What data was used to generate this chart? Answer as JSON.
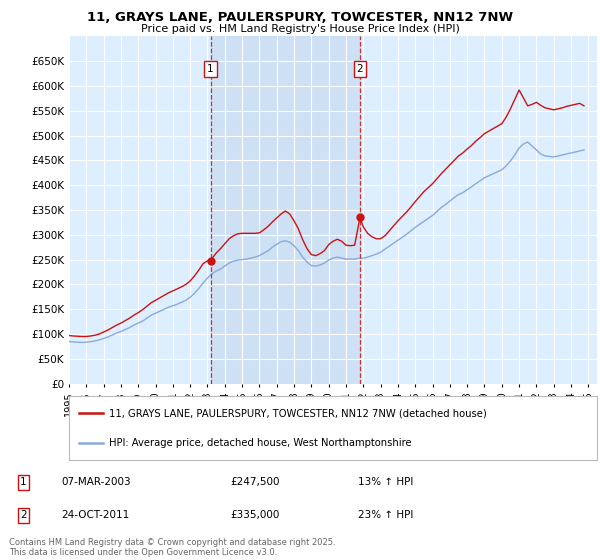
{
  "title": "11, GRAYS LANE, PAULERSPURY, TOWCESTER, NN12 7NW",
  "subtitle": "Price paid vs. HM Land Registry's House Price Index (HPI)",
  "background_color": "#ffffff",
  "plot_bg_color": "#ddeeff",
  "shade_color": "#c8dcf0",
  "grid_color": "#ffffff",
  "x_start": 1995.0,
  "x_end": 2025.5,
  "y_min": 0,
  "y_max": 700000,
  "y_ticks": [
    0,
    50000,
    100000,
    150000,
    200000,
    250000,
    300000,
    350000,
    400000,
    450000,
    500000,
    550000,
    600000,
    650000
  ],
  "x_ticks": [
    1995,
    1996,
    1997,
    1998,
    1999,
    2000,
    2001,
    2002,
    2003,
    2004,
    2005,
    2006,
    2007,
    2008,
    2009,
    2010,
    2011,
    2012,
    2013,
    2014,
    2015,
    2016,
    2017,
    2018,
    2019,
    2020,
    2021,
    2022,
    2023,
    2024,
    2025
  ],
  "sale1_x": 2003.18,
  "sale1_y": 247500,
  "sale1_label": "1",
  "sale1_date": "07-MAR-2003",
  "sale1_price": "£247,500",
  "sale1_hpi": "13% ↑ HPI",
  "sale2_x": 2011.81,
  "sale2_y": 335000,
  "sale2_label": "2",
  "sale2_date": "24-OCT-2011",
  "sale2_price": "£335,000",
  "sale2_hpi": "23% ↑ HPI",
  "hpi_color": "#88aadd",
  "price_color": "#cc1111",
  "legend1": "11, GRAYS LANE, PAULERSPURY, TOWCESTER, NN12 7NW (detached house)",
  "legend2": "HPI: Average price, detached house, West Northamptonshire",
  "footer": "Contains HM Land Registry data © Crown copyright and database right 2025.\nThis data is licensed under the Open Government Licence v3.0.",
  "hpi_data_x": [
    1995.0,
    1995.25,
    1995.5,
    1995.75,
    1996.0,
    1996.25,
    1996.5,
    1996.75,
    1997.0,
    1997.25,
    1997.5,
    1997.75,
    1998.0,
    1998.25,
    1998.5,
    1998.75,
    1999.0,
    1999.25,
    1999.5,
    1999.75,
    2000.0,
    2000.25,
    2000.5,
    2000.75,
    2001.0,
    2001.25,
    2001.5,
    2001.75,
    2002.0,
    2002.25,
    2002.5,
    2002.75,
    2003.0,
    2003.25,
    2003.5,
    2003.75,
    2004.0,
    2004.25,
    2004.5,
    2004.75,
    2005.0,
    2005.25,
    2005.5,
    2005.75,
    2006.0,
    2006.25,
    2006.5,
    2006.75,
    2007.0,
    2007.25,
    2007.5,
    2007.75,
    2008.0,
    2008.25,
    2008.5,
    2008.75,
    2009.0,
    2009.25,
    2009.5,
    2009.75,
    2010.0,
    2010.25,
    2010.5,
    2010.75,
    2011.0,
    2011.25,
    2011.5,
    2011.75,
    2012.0,
    2012.25,
    2012.5,
    2012.75,
    2013.0,
    2013.25,
    2013.5,
    2013.75,
    2014.0,
    2014.25,
    2014.5,
    2014.75,
    2015.0,
    2015.25,
    2015.5,
    2015.75,
    2016.0,
    2016.25,
    2016.5,
    2016.75,
    2017.0,
    2017.25,
    2017.5,
    2017.75,
    2018.0,
    2018.25,
    2018.5,
    2018.75,
    2019.0,
    2019.25,
    2019.5,
    2019.75,
    2020.0,
    2020.25,
    2020.5,
    2020.75,
    2021.0,
    2021.25,
    2021.5,
    2021.75,
    2022.0,
    2022.25,
    2022.5,
    2022.75,
    2023.0,
    2023.25,
    2023.5,
    2023.75,
    2024.0,
    2024.25,
    2024.5,
    2024.75
  ],
  "hpi_data_y": [
    85000,
    84000,
    83500,
    83000,
    83500,
    84500,
    86000,
    88000,
    91000,
    94000,
    98000,
    102000,
    105000,
    109000,
    113000,
    118000,
    122000,
    126000,
    132000,
    138000,
    142000,
    146000,
    150000,
    154000,
    157000,
    160000,
    164000,
    168000,
    174000,
    182000,
    192000,
    203000,
    213000,
    221000,
    227000,
    231000,
    237000,
    243000,
    247000,
    249000,
    250000,
    251000,
    253000,
    255000,
    258000,
    263000,
    268000,
    275000,
    281000,
    286000,
    288000,
    285000,
    278000,
    268000,
    255000,
    245000,
    238000,
    237000,
    239000,
    243000,
    249000,
    253000,
    255000,
    253000,
    251000,
    251000,
    251000,
    253000,
    253000,
    255000,
    258000,
    261000,
    265000,
    271000,
    277000,
    283000,
    289000,
    295000,
    301000,
    308000,
    315000,
    321000,
    327000,
    333000,
    339000,
    347000,
    355000,
    361000,
    368000,
    375000,
    381000,
    385000,
    391000,
    397000,
    403000,
    409000,
    415000,
    419000,
    423000,
    427000,
    431000,
    439000,
    449000,
    461000,
    475000,
    483000,
    487000,
    479000,
    471000,
    463000,
    459000,
    458000,
    457000,
    459000,
    461000,
    463000,
    465000,
    467000,
    469000,
    471000
  ],
  "price_data_x": [
    1995.0,
    1995.25,
    1995.5,
    1995.75,
    1996.0,
    1996.25,
    1996.5,
    1996.75,
    1997.0,
    1997.25,
    1997.5,
    1997.75,
    1998.0,
    1998.25,
    1998.5,
    1998.75,
    1999.0,
    1999.25,
    1999.5,
    1999.75,
    2000.0,
    2000.25,
    2000.5,
    2000.75,
    2001.0,
    2001.25,
    2001.5,
    2001.75,
    2002.0,
    2002.25,
    2002.5,
    2002.75,
    2003.0,
    2003.25,
    2003.5,
    2003.75,
    2004.0,
    2004.25,
    2004.5,
    2004.75,
    2005.0,
    2005.25,
    2005.5,
    2005.75,
    2006.0,
    2006.25,
    2006.5,
    2006.75,
    2007.0,
    2007.25,
    2007.5,
    2007.75,
    2008.0,
    2008.25,
    2008.5,
    2008.75,
    2009.0,
    2009.25,
    2009.5,
    2009.75,
    2010.0,
    2010.25,
    2010.5,
    2010.75,
    2011.0,
    2011.25,
    2011.5,
    2011.81,
    2012.0,
    2012.25,
    2012.5,
    2012.75,
    2013.0,
    2013.25,
    2013.5,
    2013.75,
    2014.0,
    2014.25,
    2014.5,
    2014.75,
    2015.0,
    2015.25,
    2015.5,
    2015.75,
    2016.0,
    2016.25,
    2016.5,
    2016.75,
    2017.0,
    2017.25,
    2017.5,
    2017.75,
    2018.0,
    2018.25,
    2018.5,
    2018.75,
    2019.0,
    2019.25,
    2019.5,
    2019.75,
    2020.0,
    2020.25,
    2020.5,
    2020.75,
    2021.0,
    2021.25,
    2021.5,
    2021.75,
    2022.0,
    2022.25,
    2022.5,
    2022.75,
    2023.0,
    2023.25,
    2023.5,
    2023.75,
    2024.0,
    2024.25,
    2024.5,
    2024.75
  ],
  "price_data_y": [
    97000,
    96000,
    95500,
    95000,
    95000,
    96000,
    97500,
    100000,
    104000,
    108000,
    113000,
    118000,
    122000,
    127000,
    132000,
    138000,
    143000,
    149000,
    156000,
    163000,
    168000,
    173000,
    178000,
    183000,
    187000,
    191000,
    195000,
    200000,
    207000,
    217000,
    229000,
    242000,
    247500,
    252000,
    263000,
    272000,
    282000,
    292000,
    298000,
    302000,
    303000,
    303000,
    303000,
    303000,
    304000,
    310000,
    317000,
    326000,
    334000,
    342000,
    348000,
    342000,
    328000,
    312000,
    290000,
    272000,
    260000,
    258000,
    262000,
    268000,
    280000,
    287000,
    291000,
    287000,
    279000,
    278000,
    279000,
    335000,
    316000,
    303000,
    296000,
    292000,
    292000,
    298000,
    308000,
    318000,
    328000,
    337000,
    346000,
    356000,
    367000,
    377000,
    387000,
    395000,
    403000,
    413000,
    423000,
    432000,
    441000,
    450000,
    459000,
    465000,
    473000,
    480000,
    489000,
    496000,
    504000,
    509000,
    514000,
    519000,
    524000,
    537000,
    554000,
    573000,
    592000,
    576000,
    560000,
    563000,
    567000,
    561000,
    556000,
    554000,
    552000,
    554000,
    556000,
    559000,
    561000,
    563000,
    565000,
    560000
  ]
}
